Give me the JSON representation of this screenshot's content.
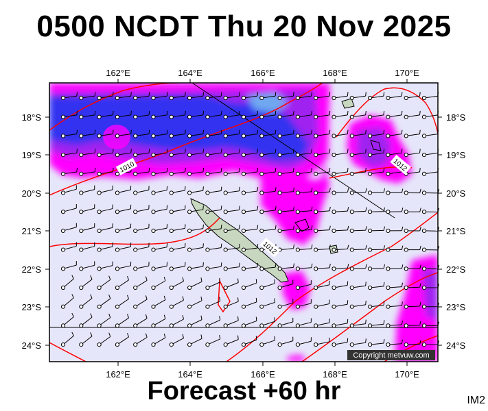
{
  "title": "0500 NCDT Thu 20 Nov 2025",
  "footer": "Forecast +60 hr",
  "code": "IM2",
  "copyright": "Copyright metvuw.com",
  "colors": {
    "background": "#e6e6fa",
    "magenta": "#ff00ff",
    "violet": "#a020f0",
    "blue": "#3030f0",
    "light_blue": "#6fa8f0",
    "isobar": "#ff0000",
    "land": "#c8d8c0"
  },
  "axes": {
    "lon_labels": [
      "162°E",
      "164°E",
      "166°E",
      "168°E",
      "170°E"
    ],
    "lat_labels": [
      "18°S",
      "19°S",
      "20°S",
      "21°S",
      "22°S",
      "23°S",
      "24°S"
    ]
  },
  "isobars": [
    {
      "label": "1010"
    },
    {
      "label": "1012"
    },
    {
      "label": "1012"
    }
  ]
}
